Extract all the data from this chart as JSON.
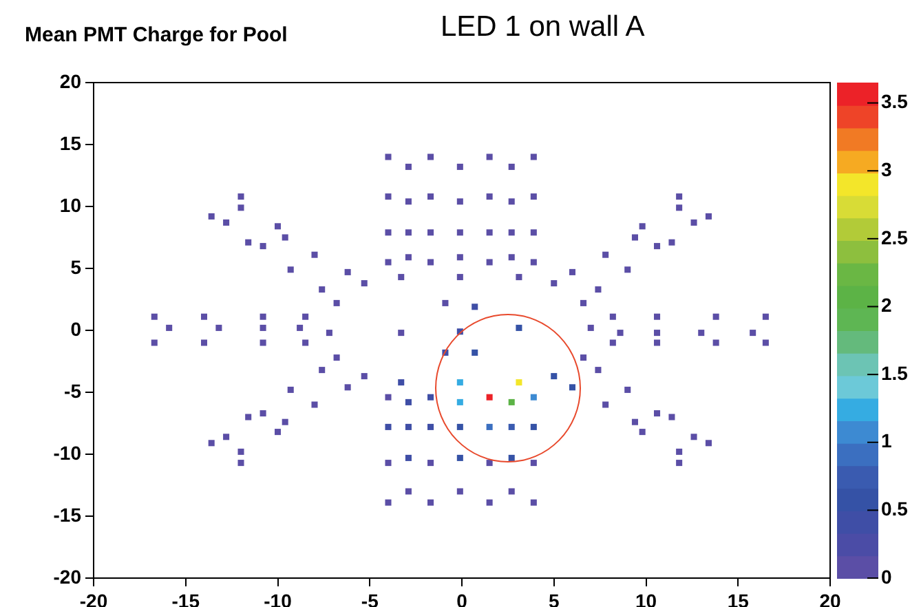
{
  "chart_data": {
    "type": "scatter",
    "title": "Mean PMT Charge for Pool",
    "subtitle": "LED 1 on wall A",
    "marker": "square",
    "grid": false,
    "xlim": [
      -20,
      20
    ],
    "xticks": [
      -20,
      -15,
      -10,
      -5,
      0,
      5,
      10,
      15,
      20
    ],
    "ylim": [
      -20,
      20
    ],
    "yticks": [
      -20,
      -15,
      -10,
      -5,
      0,
      5,
      10,
      15,
      20
    ],
    "clim": [
      0,
      3.65
    ],
    "cticks": [
      0,
      0.5,
      1,
      1.5,
      2,
      2.5,
      3,
      3.5
    ],
    "series": [
      {
        "x": [
          -4.0,
          -2.9,
          -1.7,
          -0.1,
          1.5,
          2.7,
          3.9,
          -12.0,
          -12.0,
          -4.0,
          -2.9,
          -1.7,
          -0.1,
          1.5,
          2.7,
          3.9,
          11.8,
          11.8,
          -13.6,
          -12.8,
          -10.0,
          -9.6,
          -11.6,
          -10.8,
          13.4,
          12.6,
          9.8,
          9.4,
          11.4,
          10.6,
          -4.0,
          -2.9,
          -1.7,
          -0.1,
          1.5,
          2.7,
          3.9,
          -8.0,
          7.8,
          -4.0,
          -2.9,
          -1.7,
          -0.1,
          1.5,
          2.7,
          3.9,
          -9.3,
          9.0,
          -6.2,
          6.0,
          -3.3,
          -0.1,
          3.1,
          -5.3,
          5.0,
          -7.6,
          7.4,
          -6.8,
          6.6,
          -0.9,
          0.7,
          -16.7,
          -14.0,
          -10.8,
          -8.5,
          8.2,
          10.6,
          13.8,
          16.5,
          -15.9,
          -13.2,
          -10.8,
          -8.8,
          3.1,
          7.0,
          -7.2,
          -3.3,
          -0.1,
          8.6,
          10.6,
          13.0,
          15.8,
          -16.7,
          -14.0,
          -10.8,
          -8.5,
          8.2,
          10.6,
          13.8,
          16.5,
          -0.9,
          0.7,
          -6.8,
          6.6,
          -7.6,
          7.4,
          -5.3,
          5.0,
          -6.2,
          6.0,
          -9.3,
          9.0,
          -8.0,
          7.8,
          -10.8,
          10.6,
          -11.6,
          11.4,
          -9.6,
          9.4,
          -10.0,
          9.8,
          -12.8,
          12.6,
          -13.6,
          13.4,
          -12.0,
          11.8,
          -12.0,
          11.8,
          -3.3,
          -0.1,
          3.1,
          -4.0,
          -2.9,
          -1.7,
          1.5,
          3.9,
          -0.1,
          2.7,
          -4.0,
          -2.9,
          -1.7,
          -0.1,
          1.5,
          2.7,
          3.9,
          -4.0,
          -2.9,
          -1.7,
          -0.1,
          1.5,
          2.7,
          3.9,
          -4.0,
          -2.9,
          -1.7,
          -0.1,
          1.5,
          2.7,
          3.9
        ],
        "values": [
          14.0,
          13.2,
          14.0,
          13.2,
          14.0,
          13.2,
          14.0,
          10.8,
          9.9,
          10.8,
          10.4,
          10.8,
          10.4,
          10.8,
          10.4,
          10.8,
          10.8,
          9.9,
          9.2,
          8.7,
          8.4,
          7.5,
          7.1,
          6.8,
          9.2,
          8.7,
          8.4,
          7.5,
          7.1,
          6.8,
          7.9,
          7.9,
          7.9,
          7.9,
          7.9,
          7.9,
          7.9,
          6.1,
          6.1,
          5.5,
          5.9,
          5.5,
          5.9,
          5.5,
          5.9,
          5.5,
          4.9,
          4.9,
          4.7,
          4.7,
          4.3,
          4.3,
          4.3,
          3.8,
          3.8,
          3.3,
          3.3,
          2.2,
          2.2,
          2.2,
          1.9,
          1.1,
          1.1,
          1.1,
          1.1,
          1.1,
          1.1,
          1.1,
          1.1,
          0.2,
          0.2,
          0.2,
          0.2,
          0.2,
          0.2,
          -0.2,
          -0.2,
          -0.1,
          -0.2,
          -0.2,
          -0.2,
          -0.2,
          -1.0,
          -1.0,
          -1.0,
          -1.0,
          -1.0,
          -1.0,
          -1.0,
          -1.0,
          -1.8,
          -1.8,
          -2.2,
          -2.2,
          -3.2,
          -3.2,
          -3.7,
          -3.7,
          -4.6,
          -4.6,
          -4.8,
          -4.8,
          -6.0,
          -6.0,
          -6.7,
          -6.7,
          -7.0,
          -7.0,
          -7.4,
          -7.4,
          -8.2,
          -8.2,
          -8.6,
          -8.6,
          -9.1,
          -9.1,
          -9.8,
          -9.8,
          -10.7,
          -10.7,
          -4.2,
          -4.2,
          -4.2,
          -5.4,
          -5.8,
          -5.4,
          -5.4,
          -5.4,
          -5.8,
          -5.8,
          -7.8,
          -7.8,
          -7.8,
          -7.8,
          -7.8,
          -7.8,
          -7.8,
          -10.7,
          -10.3,
          -10.7,
          -10.3,
          -10.7,
          -10.3,
          -10.7,
          -13.9,
          -13.0,
          -13.9,
          -13.0,
          -13.9,
          -13.0,
          -13.9
        ],
        "cvalues": [
          0.1,
          0.1,
          0.1,
          0.1,
          0.1,
          0.1,
          0.1,
          0.1,
          0.1,
          0.1,
          0.1,
          0.1,
          0.1,
          0.1,
          0.1,
          0.1,
          0.1,
          0.1,
          0.1,
          0.1,
          0.1,
          0.1,
          0.1,
          0.1,
          0.1,
          0.1,
          0.1,
          0.1,
          0.1,
          0.1,
          0.1,
          0.1,
          0.1,
          0.1,
          0.1,
          0.1,
          0.1,
          0.1,
          0.1,
          0.1,
          0.1,
          0.1,
          0.1,
          0.1,
          0.1,
          0.1,
          0.1,
          0.1,
          0.1,
          0.1,
          0.1,
          0.1,
          0.1,
          0.1,
          0.1,
          0.1,
          0.1,
          0.1,
          0.1,
          0.1,
          0.4,
          0.1,
          0.1,
          0.1,
          0.1,
          0.1,
          0.1,
          0.1,
          0.1,
          0.1,
          0.1,
          0.1,
          0.1,
          0.5,
          0.1,
          0.1,
          0.1,
          0.4,
          0.1,
          0.1,
          0.1,
          0.1,
          0.1,
          0.1,
          0.1,
          0.1,
          0.1,
          0.1,
          0.1,
          0.1,
          0.4,
          0.6,
          0.1,
          0.1,
          0.1,
          0.1,
          0.1,
          0.6,
          0.1,
          0.6,
          0.1,
          0.1,
          0.1,
          0.1,
          0.1,
          0.1,
          0.1,
          0.1,
          0.1,
          0.1,
          0.1,
          0.1,
          0.1,
          0.1,
          0.1,
          0.1,
          0.1,
          0.1,
          0.1,
          0.1,
          0.4,
          1.2,
          2.9,
          0.1,
          0.4,
          0.4,
          3.55,
          1.05,
          1.3,
          2.0,
          0.4,
          0.4,
          0.4,
          0.6,
          0.85,
          0.8,
          0.6,
          0.1,
          0.4,
          0.1,
          0.5,
          0.1,
          0.5,
          0.1,
          0.1,
          0.1,
          0.1,
          0.1,
          0.1,
          0.1,
          0.1
        ]
      }
    ]
  }
}
